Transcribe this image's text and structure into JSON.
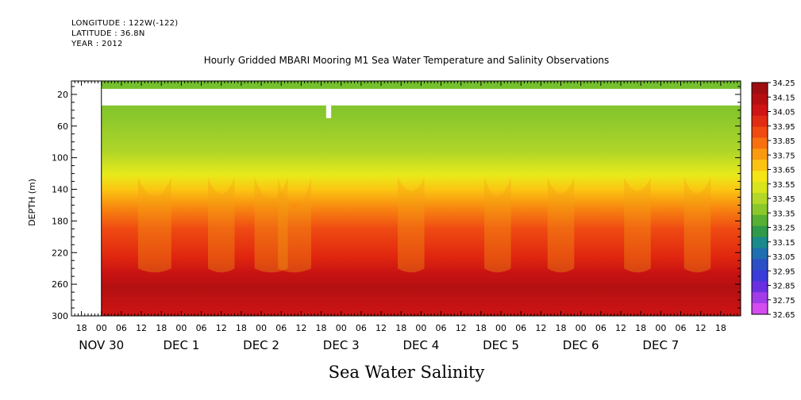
{
  "meta": {
    "longitude": "LONGITUDE : 122W(-122)",
    "latitude": "LATITUDE : 36.8N",
    "year": "YEAR : 2012"
  },
  "chart_data": {
    "type": "heatmap",
    "title": "Hourly Gridded MBARI Mooring M1 Sea Water Temperature and Salinity Observations",
    "xlabel": "Sea Water Salinity",
    "ylabel": "DEPTH (m)",
    "x_unit": "hours since 2012-11-29 15:00",
    "xlim": [
      0,
      201
    ],
    "ylim": [
      300,
      3
    ],
    "y_ticks": [
      20,
      60,
      100,
      140,
      180,
      220,
      260,
      300
    ],
    "x_hour_ticks": [
      {
        "h": 3,
        "label": "18"
      },
      {
        "h": 9,
        "label": "00"
      },
      {
        "h": 15,
        "label": "06"
      },
      {
        "h": 21,
        "label": "12"
      },
      {
        "h": 27,
        "label": "18"
      },
      {
        "h": 33,
        "label": "00"
      },
      {
        "h": 39,
        "label": "06"
      },
      {
        "h": 45,
        "label": "12"
      },
      {
        "h": 51,
        "label": "18"
      },
      {
        "h": 57,
        "label": "00"
      },
      {
        "h": 63,
        "label": "06"
      },
      {
        "h": 69,
        "label": "12"
      },
      {
        "h": 75,
        "label": "18"
      },
      {
        "h": 81,
        "label": "00"
      },
      {
        "h": 87,
        "label": "06"
      },
      {
        "h": 93,
        "label": "12"
      },
      {
        "h": 99,
        "label": "18"
      },
      {
        "h": 105,
        "label": "00"
      },
      {
        "h": 111,
        "label": "06"
      },
      {
        "h": 117,
        "label": "12"
      },
      {
        "h": 123,
        "label": "18"
      },
      {
        "h": 129,
        "label": "00"
      },
      {
        "h": 135,
        "label": "06"
      },
      {
        "h": 141,
        "label": "12"
      },
      {
        "h": 147,
        "label": "18"
      },
      {
        "h": 153,
        "label": "00"
      },
      {
        "h": 159,
        "label": "06"
      },
      {
        "h": 165,
        "label": "12"
      },
      {
        "h": 171,
        "label": "18"
      },
      {
        "h": 177,
        "label": "00"
      },
      {
        "h": 183,
        "label": "06"
      },
      {
        "h": 189,
        "label": "12"
      },
      {
        "h": 195,
        "label": "18"
      }
    ],
    "x_date_labels": [
      {
        "h": 9,
        "label": "NOV 30"
      },
      {
        "h": 33,
        "label": "DEC  1"
      },
      {
        "h": 57,
        "label": "DEC  2"
      },
      {
        "h": 81,
        "label": "DEC  3"
      },
      {
        "h": 105,
        "label": "DEC  4"
      },
      {
        "h": 129,
        "label": "DEC  5"
      },
      {
        "h": 153,
        "label": "DEC  6"
      },
      {
        "h": 177,
        "label": "DEC  7"
      }
    ],
    "data_extent_hours": [
      9,
      201
    ],
    "gaps": [
      {
        "h0": 9,
        "h1": 201,
        "d0": 13,
        "d1": 34
      },
      {
        "h0": 76.5,
        "h1": 78,
        "d0": 34,
        "d1": 50
      }
    ],
    "colorbar": {
      "levels": [
        "34.25",
        "34.15",
        "34.05",
        "33.95",
        "33.85",
        "33.75",
        "33.65",
        "33.55",
        "33.45",
        "33.35",
        "33.25",
        "33.15",
        "33.05",
        "32.95",
        "32.85",
        "32.75",
        "32.65"
      ],
      "colors": [
        "#9e0e10",
        "#b50f12",
        "#ce1414",
        "#e02c14",
        "#ef4a12",
        "#f7700f",
        "#fa9a10",
        "#fcc312",
        "#f5e516",
        "#d8e41c",
        "#b4d829",
        "#8ac82c",
        "#57b033",
        "#2f9a4a",
        "#1a8a8a",
        "#1f6fb0",
        "#2c4fc8",
        "#3a3bd8",
        "#6a2fe0",
        "#a23be8",
        "#d54cf0"
      ]
    },
    "profile_points": [
      {
        "salinity": 33.42,
        "depth": 10
      },
      {
        "salinity": 33.45,
        "depth": 60
      },
      {
        "salinity": 33.5,
        "depth": 100
      },
      {
        "salinity": 33.7,
        "depth": 140
      },
      {
        "salinity": 33.95,
        "depth": 180
      },
      {
        "salinity": 34.05,
        "depth": 220
      },
      {
        "salinity": 34.2,
        "depth": 260
      },
      {
        "salinity": 34.15,
        "depth": 300
      }
    ]
  }
}
